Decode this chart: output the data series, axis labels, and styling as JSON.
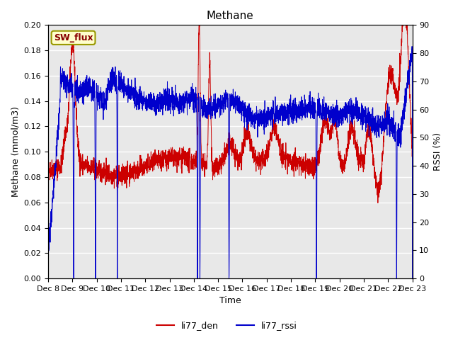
{
  "title": "Methane",
  "ylabel_left": "Methane (mmol/m3)",
  "ylabel_right": "RSSI (%)",
  "xlabel": "Time",
  "ylim_left": [
    0.0,
    0.2
  ],
  "ylim_right": [
    0,
    90
  ],
  "yticks_left": [
    0.0,
    0.02,
    0.04,
    0.06,
    0.08,
    0.1,
    0.12,
    0.14,
    0.16,
    0.18,
    0.2
  ],
  "yticks_right": [
    0,
    10,
    20,
    30,
    40,
    50,
    60,
    70,
    80,
    90
  ],
  "xtick_labels": [
    "Dec 8",
    "Dec 9",
    "Dec 10",
    "Dec 11",
    "Dec 12",
    "Dec 13",
    "Dec 14",
    "Dec 15",
    "Dec 16",
    "Dec 17",
    "Dec 18",
    "Dec 19",
    "Dec 20",
    "Dec 21",
    "Dec 22",
    "Dec 23"
  ],
  "color_red": "#cc0000",
  "color_blue": "#0000cc",
  "bg_color": "#e8e8e8",
  "legend_box_color": "#ffffcc",
  "legend_box_edge": "#999900",
  "legend_label": "SW_flux",
  "line1_label": "li77_den",
  "line2_label": "li77_rssi",
  "title_fontsize": 11,
  "axis_label_fontsize": 9,
  "tick_fontsize": 8
}
